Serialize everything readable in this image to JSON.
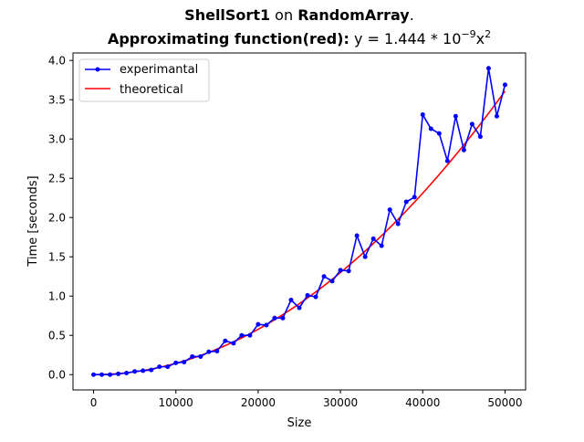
{
  "chart_data": {
    "type": "line",
    "title": {
      "line1": {
        "algo": "ShellSort1",
        "on": " on ",
        "input": "RandomArray",
        "end": "."
      },
      "line2": {
        "label": "Approximating function(red)",
        "colon": ":",
        "formula_pre": " y = 1.444 * 10",
        "exp1": "−9",
        "formula_mid": "x",
        "exp2": "2"
      }
    },
    "xlabel": "Size",
    "ylabel": "Time [seconds]",
    "xlim": [
      -2500,
      52500
    ],
    "ylim": [
      -0.195,
      4.095
    ],
    "xticks": [
      0,
      10000,
      20000,
      30000,
      40000,
      50000
    ],
    "xtick_labels": [
      "0",
      "10000",
      "20000",
      "30000",
      "40000",
      "50000"
    ],
    "yticks": [
      0,
      0.5,
      1,
      1.5,
      2,
      2.5,
      3,
      3.5,
      4
    ],
    "ytick_labels": [
      "0.0",
      "0.5",
      "1.0",
      "1.5",
      "2.0",
      "2.5",
      "3.0",
      "3.5",
      "4.0"
    ],
    "grid": false,
    "legend_position": "top-left",
    "series": [
      {
        "name": "experimantal",
        "color": "#0000ff",
        "marker": "dot",
        "x": [
          0,
          1000,
          2000,
          3000,
          4000,
          5000,
          6000,
          7000,
          8000,
          9000,
          10000,
          11000,
          12000,
          13000,
          14000,
          15000,
          16000,
          17000,
          18000,
          19000,
          20000,
          21000,
          22000,
          23000,
          24000,
          25000,
          26000,
          27000,
          28000,
          29000,
          30000,
          31000,
          32000,
          33000,
          34000,
          35000,
          36000,
          37000,
          38000,
          39000,
          40000,
          41000,
          42000,
          43000,
          44000,
          45000,
          46000,
          47000,
          48000,
          49000,
          50000
        ],
        "y": [
          0.0,
          0.0,
          0.0,
          0.01,
          0.02,
          0.04,
          0.05,
          0.06,
          0.1,
          0.1,
          0.15,
          0.16,
          0.23,
          0.23,
          0.29,
          0.3,
          0.43,
          0.4,
          0.5,
          0.5,
          0.64,
          0.63,
          0.72,
          0.72,
          0.95,
          0.85,
          1.01,
          0.99,
          1.25,
          1.19,
          1.33,
          1.32,
          1.77,
          1.5,
          1.73,
          1.64,
          2.1,
          1.92,
          2.2,
          2.26,
          3.31,
          3.13,
          3.07,
          2.72,
          3.29,
          2.86,
          3.19,
          3.03,
          3.9,
          3.29,
          3.69
        ]
      },
      {
        "name": "theoretical",
        "color": "#ff0000",
        "marker": "none",
        "formula": "y = 1.444e-9 * x^2",
        "coef": 1.444e-09,
        "x_range": [
          0,
          50000
        ]
      }
    ]
  }
}
